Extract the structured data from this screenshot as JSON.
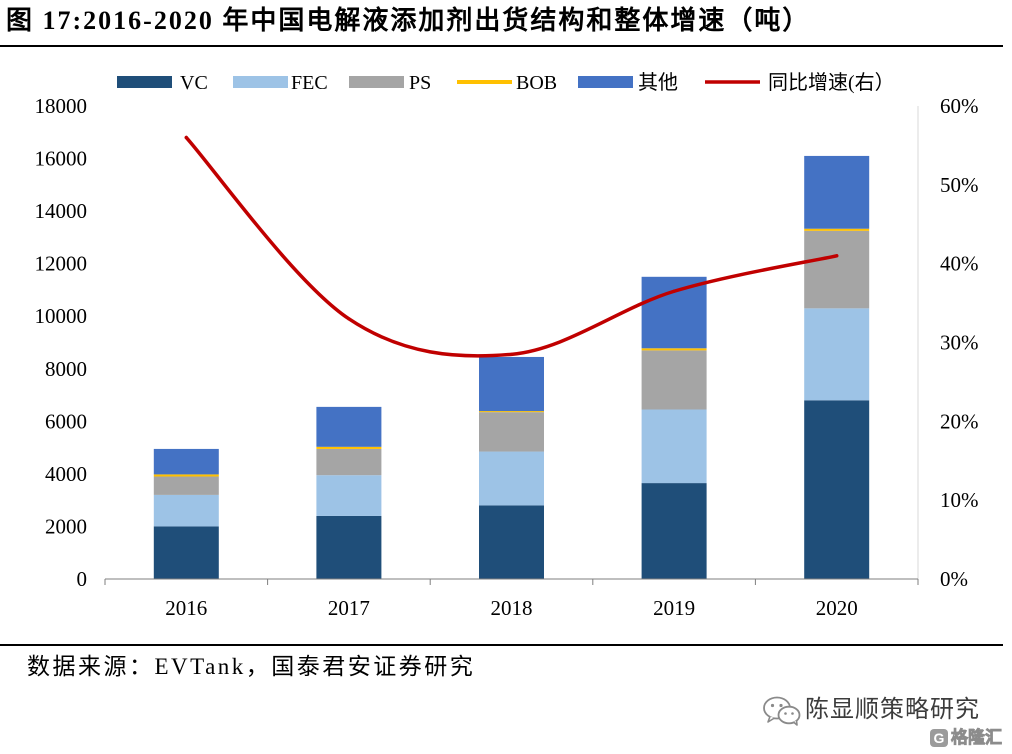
{
  "source": "数据来源：EVTank，国泰君安证券研究",
  "watermark": {
    "account_name": "陈显顺策略研究",
    "icon": "wechat-icon",
    "logo_mark": "G",
    "logo_text": "格隆汇"
  },
  "chart_data": {
    "type": "bar",
    "stacked": true,
    "title": "图 17:2016-2020 年中国电解液添加剂出货结构和整体增速（吨）",
    "categories": [
      "2016",
      "2017",
      "2018",
      "2019",
      "2020"
    ],
    "series": [
      {
        "name": "VC",
        "type": "bar",
        "axis": "left",
        "color": "#1F4E79",
        "values": [
          2000,
          2400,
          2800,
          3650,
          6800
        ]
      },
      {
        "name": "FEC",
        "type": "bar",
        "axis": "left",
        "color": "#9DC3E6",
        "values": [
          1200,
          1550,
          2050,
          2800,
          3500
        ]
      },
      {
        "name": "PS",
        "type": "bar",
        "axis": "left",
        "color": "#A5A5A5",
        "values": [
          700,
          1000,
          1500,
          2250,
          2950
        ]
      },
      {
        "name": "BOB",
        "type": "bar",
        "axis": "left",
        "color": "#FFC000",
        "values": [
          80,
          80,
          40,
          80,
          80
        ]
      },
      {
        "name": "其他",
        "type": "bar",
        "axis": "left",
        "color": "#4472C4",
        "values": [
          970,
          1520,
          2060,
          2720,
          2770
        ]
      },
      {
        "name": "同比增速(右）",
        "type": "line",
        "axis": "right",
        "smooth": true,
        "color": "#C00000",
        "values": [
          56,
          33,
          28.5,
          36.5,
          41
        ]
      }
    ],
    "y_left": {
      "range": [
        0,
        18000
      ],
      "ticks": [
        0,
        2000,
        4000,
        6000,
        8000,
        10000,
        12000,
        14000,
        16000,
        18000
      ],
      "tick_labels": [
        "0",
        "2000",
        "4000",
        "6000",
        "8000",
        "10000",
        "12000",
        "14000",
        "16000",
        "18000"
      ]
    },
    "y_right": {
      "range": [
        0,
        60
      ],
      "ticks": [
        0,
        10,
        20,
        30,
        40,
        50,
        60
      ],
      "tick_labels": [
        "0%",
        "10%",
        "20%",
        "30%",
        "40%",
        "50%",
        "60%"
      ]
    },
    "legend": "top",
    "grid": false
  }
}
